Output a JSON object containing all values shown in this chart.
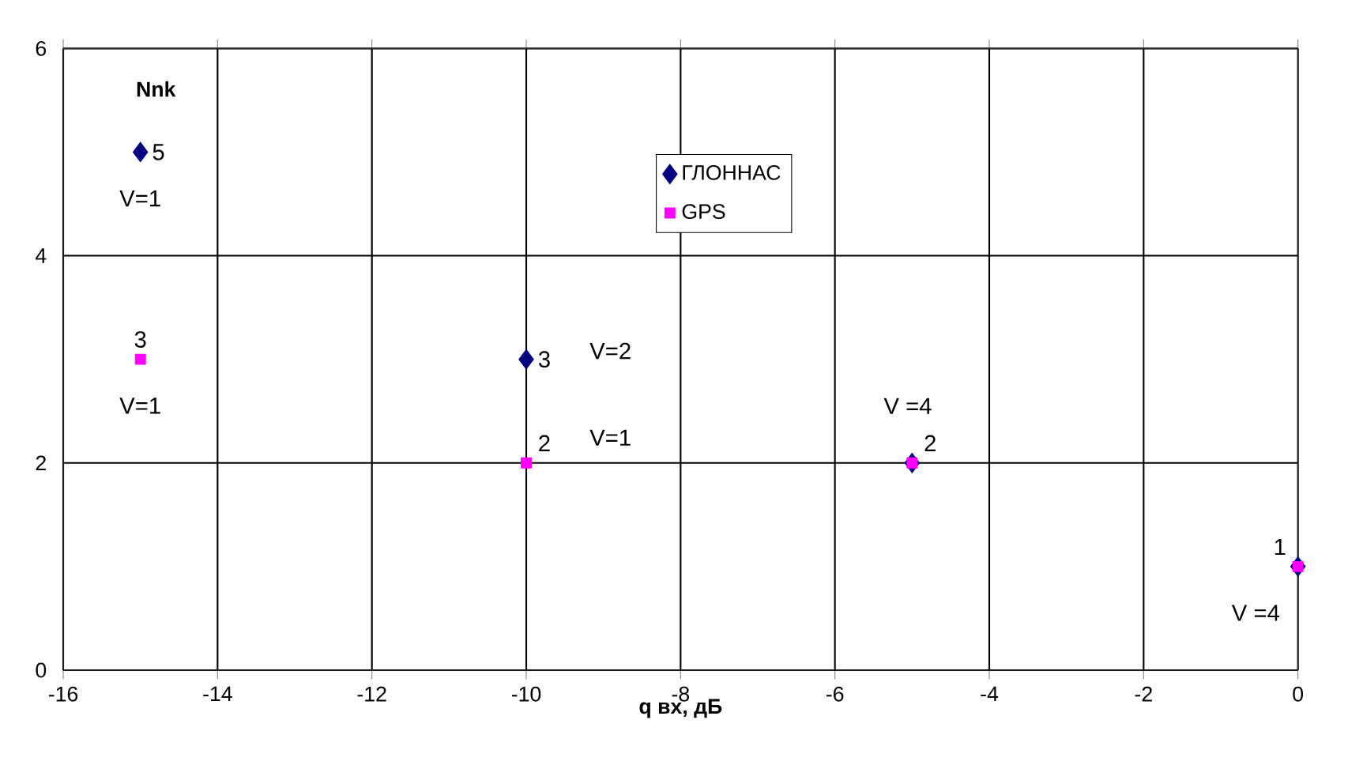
{
  "chart_data": {
    "type": "scatter",
    "xlabel": "q вх, дБ",
    "ylabel": "Nnk",
    "xlim": [
      -16,
      0
    ],
    "ylim": [
      0,
      6
    ],
    "xticks": [
      -16,
      -14,
      -12,
      -10,
      -8,
      -6,
      -4,
      -2,
      0
    ],
    "yticks": [
      0,
      2,
      4,
      6
    ],
    "grid": true,
    "legend": "top",
    "series": [
      {
        "name": "ГЛОННАС",
        "color": "#000080",
        "marker": "diamond",
        "x": [
          -15,
          -10,
          -5,
          0
        ],
        "values": [
          5,
          3,
          2,
          1
        ],
        "value_labels": [
          "5",
          "3",
          null,
          null
        ]
      },
      {
        "name": "GPS",
        "color": "#ff00ff",
        "marker": "square",
        "x": [
          -15,
          -10,
          -5,
          0
        ],
        "values": [
          3,
          2,
          2,
          1
        ],
        "value_labels": [
          "3",
          "2",
          "2",
          "1"
        ]
      }
    ],
    "annotations": [
      {
        "text": "V=1",
        "x": -15,
        "y": 5
      },
      {
        "text": "V=1",
        "x": -15,
        "y": 3
      },
      {
        "text": "V=2",
        "x": -10,
        "y": 3
      },
      {
        "text": "V=1",
        "x": -10,
        "y": 2
      },
      {
        "text": "V =4",
        "x": -5,
        "y": 2
      },
      {
        "text": "V =4",
        "x": 0,
        "y": 1
      }
    ]
  }
}
